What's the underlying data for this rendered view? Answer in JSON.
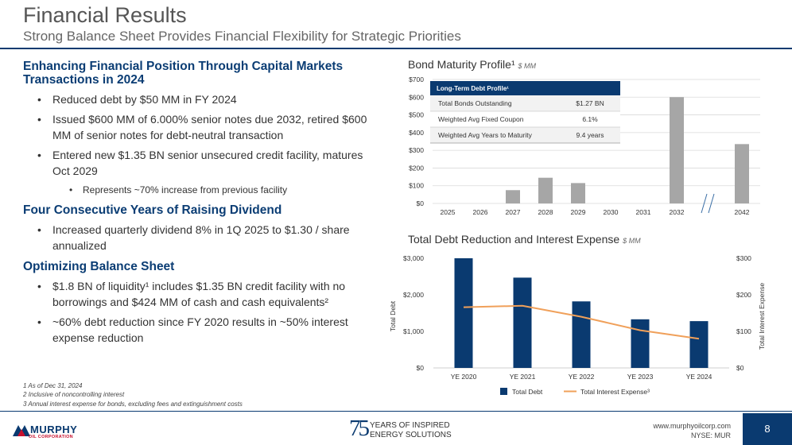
{
  "header": {
    "title": "Financial Results",
    "subtitle": "Strong Balance Sheet Provides Financial Flexibility for Strategic Priorities"
  },
  "left": {
    "sections": [
      {
        "heading": "Enhancing Financial Position Through Capital Markets Transactions in 2024",
        "bullets": [
          "Reduced debt by $50 MM in FY 2024",
          "Issued $600 MM of 6.000% senior notes due 2032, retired $600 MM of senior notes for debt-neutral transaction",
          "Entered new $1.35 BN senior unsecured credit facility, matures Oct 2029"
        ],
        "sub_bullet": "Represents ~70% increase from previous facility"
      },
      {
        "heading": "Four Consecutive Years of Raising Dividend",
        "bullets": [
          "Increased quarterly dividend 8% in 1Q 2025 to $1.30 / share annualized"
        ]
      },
      {
        "heading": "Optimizing Balance Sheet",
        "bullets": [
          "$1.8 BN of liquidity¹ includes $1.35 BN credit facility with no borrowings and $424 MM of cash and cash equivalents²",
          "~60% debt reduction since FY 2020 results in ~50% interest expense reduction"
        ]
      }
    ]
  },
  "footnotes": [
    "1 As of Dec 31, 2024",
    "2 Inclusive of noncontrolling interest",
    "3 Annual interest expense for bonds, excluding fees and extinguishment costs"
  ],
  "footer": {
    "logo_line1": "MURPHY",
    "logo_line2": "OIL CORPORATION",
    "anniv_number": "75",
    "anniv_line1": "YEARS OF INSPIRED",
    "anniv_line2": "ENERGY SOLUTIONS",
    "website": "www.murphyoilcorp.com",
    "ticker": "NYSE: MUR",
    "page_number": "8"
  },
  "colors": {
    "navy": "#0a3a70",
    "gray_bar": "#a6a6a6",
    "orange": "#f0a05a"
  },
  "chart_data": [
    {
      "type": "bar",
      "title": "Bond Maturity Profile¹",
      "unit": "$ MM",
      "categories": [
        "2025",
        "2026",
        "2027",
        "2028",
        "2029",
        "2030",
        "2031",
        "2032",
        "2042"
      ],
      "values": [
        0,
        0,
        75,
        145,
        115,
        0,
        0,
        600,
        335
      ],
      "y_ticks": [
        "$0",
        "$100",
        "$200",
        "$300",
        "$400",
        "$500",
        "$600",
        "$700"
      ],
      "ylim": [
        0,
        700
      ],
      "grid": true,
      "axis_break_between": [
        "2032",
        "2042"
      ],
      "inset_table": {
        "title": "Long-Term Debt Profile¹",
        "rows": [
          [
            "Total Bonds Outstanding",
            "$1.27 BN"
          ],
          [
            "Weighted Avg Fixed Coupon",
            "6.1%"
          ],
          [
            "Weighted Avg Years to Maturity",
            "9.4 years"
          ]
        ]
      }
    },
    {
      "type": "bar+line",
      "title": "Total Debt Reduction and Interest Expense",
      "unit": "$ MM",
      "categories": [
        "YE 2020",
        "YE 2021",
        "YE 2022",
        "YE 2023",
        "YE 2024"
      ],
      "series": [
        {
          "name": "Total Debt",
          "type": "bar",
          "axis": "left",
          "values": [
            3000,
            2470,
            1820,
            1330,
            1280
          ]
        },
        {
          "name": "Total Interest Expense³",
          "type": "line",
          "axis": "right",
          "values": [
            166,
            170,
            140,
            103,
            80
          ]
        }
      ],
      "ylabel_left": "Total Debt",
      "ylabel_right": "Total Interest Expense",
      "y_ticks_left": [
        "$0",
        "$1,000",
        "$2,000",
        "$3,000"
      ],
      "y_ticks_right": [
        "$0",
        "$100",
        "$200",
        "$300"
      ],
      "ylim_left": [
        0,
        3000
      ],
      "ylim_right": [
        0,
        300
      ],
      "legend": "bottom"
    }
  ]
}
